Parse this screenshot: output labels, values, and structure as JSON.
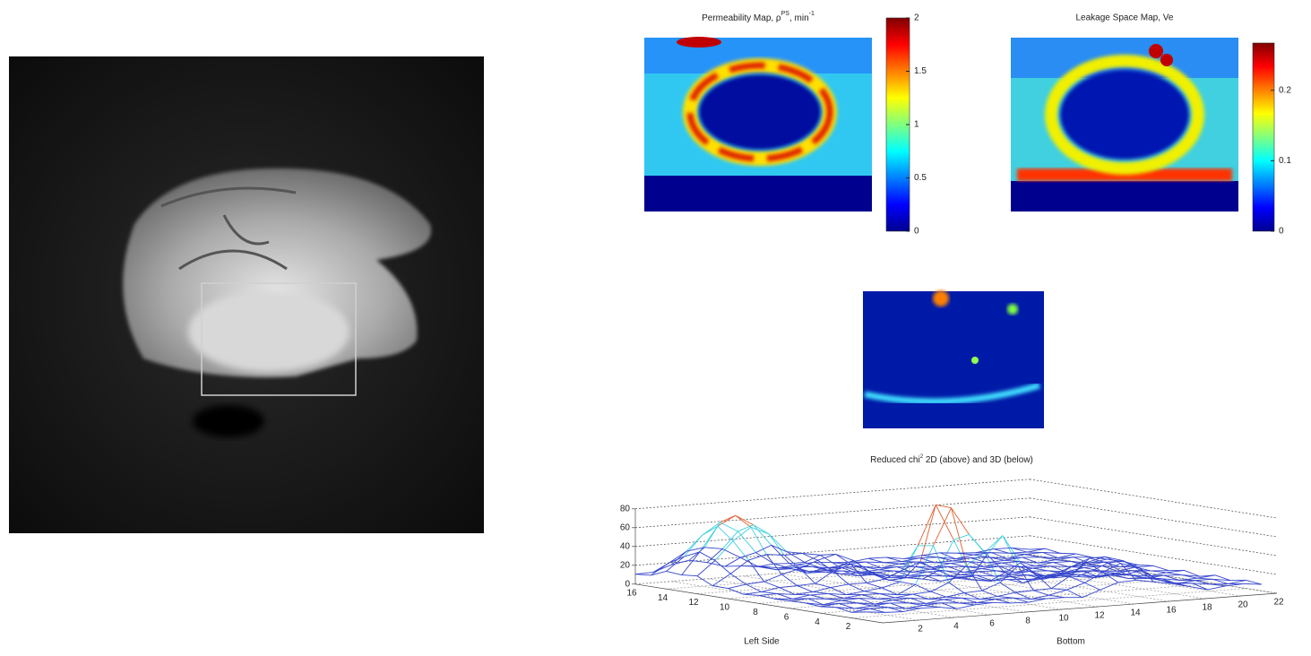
{
  "permeability_map": {
    "title": "Permeability Map, ρ",
    "title_sup": "PS",
    "title_tail": ", min",
    "title_tail_sup": "-1",
    "colorbar": {
      "lim": [
        0,
        2
      ],
      "ticks": [
        0,
        0.5,
        1,
        1.5,
        2
      ]
    }
  },
  "leakage_map": {
    "title": "Leakage Space Map, Ve",
    "colorbar": {
      "lim": [
        0,
        0.267
      ],
      "ticks": [
        0,
        0.1,
        0.2
      ]
    }
  },
  "chi_plot": {
    "title": "Reduced chi",
    "title_sup": "2",
    "title_tail": " 2D (above) and 3D (below)",
    "zlim": [
      0,
      80
    ],
    "zticks": [
      0,
      20,
      40,
      60,
      80
    ],
    "left_side_label": "Left Side",
    "left_side_lim": [
      0,
      16
    ],
    "left_side_ticks": [
      16,
      14,
      12,
      10,
      8,
      6,
      4,
      2
    ],
    "bottom_label": "Bottom",
    "bottom_lim": [
      0,
      22
    ],
    "bottom_ticks": [
      2,
      4,
      6,
      8,
      10,
      12,
      14,
      16,
      18,
      20,
      22
    ]
  }
}
